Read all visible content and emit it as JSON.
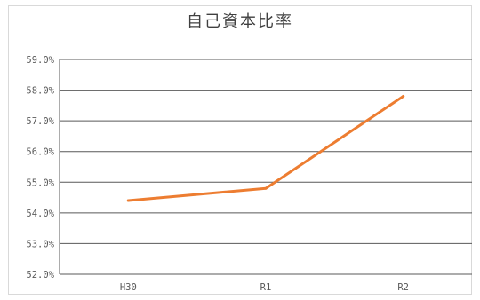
{
  "chart_data": {
    "type": "line",
    "title": "自己資本比率",
    "xlabel": "",
    "ylabel": "",
    "categories": [
      "H30",
      "R1",
      "R2"
    ],
    "series": [
      {
        "values": [
          54.4,
          54.8,
          57.8
        ]
      }
    ],
    "ylim": [
      52.0,
      59.0
    ],
    "yticks": [
      "52.0%",
      "53.0%",
      "54.0%",
      "55.0%",
      "56.0%",
      "57.0%",
      "58.0%",
      "59.0%"
    ],
    "grid": true,
    "legend": "none",
    "colors": {
      "line": "#ED7D31",
      "grid": "#595959",
      "text": "#595959"
    }
  }
}
